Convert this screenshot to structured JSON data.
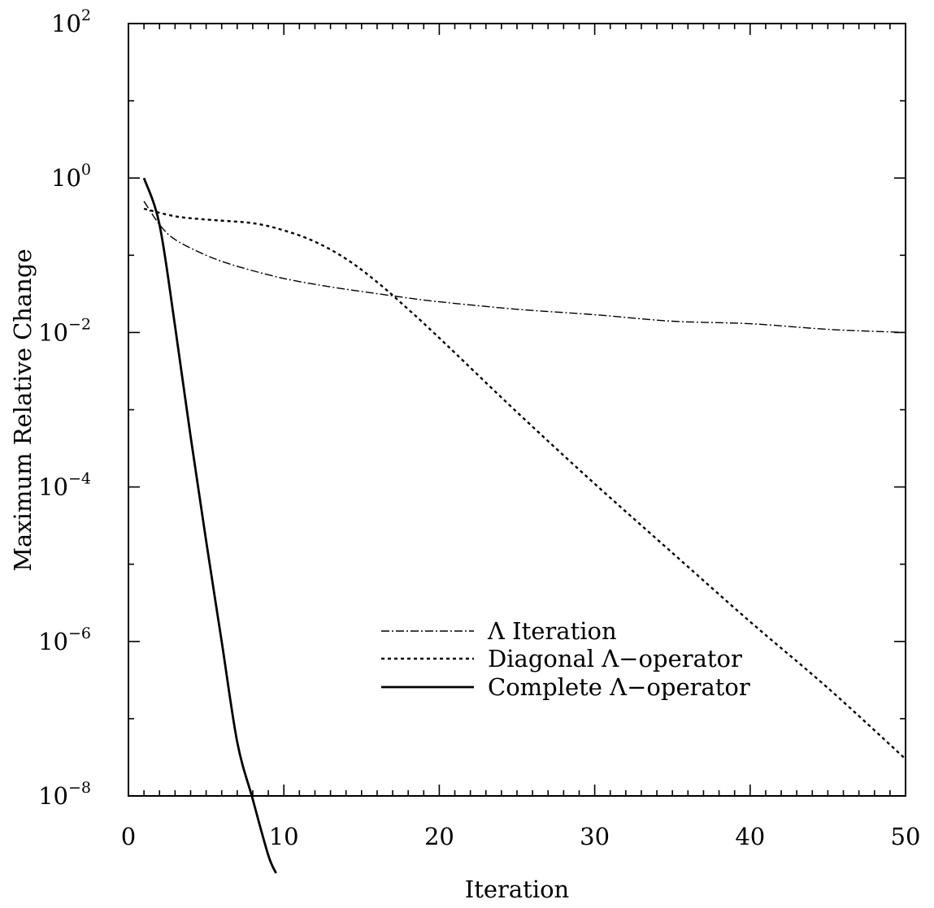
{
  "chart_data": {
    "type": "line",
    "xlabel": "Iteration",
    "ylabel": "Maximum Relative Change",
    "xlim": [
      0,
      50
    ],
    "ylim_log10": [
      -8,
      2
    ],
    "y_scale": "log",
    "x_ticks": [
      "0",
      "10",
      "20",
      "30",
      "40",
      "50"
    ],
    "y_ticks": [
      {
        "base": "10",
        "exp": "2"
      },
      {
        "base": "10",
        "exp": "0"
      },
      {
        "base": "10",
        "exp": "−2"
      },
      {
        "base": "10",
        "exp": "−4"
      },
      {
        "base": "10",
        "exp": "−6"
      },
      {
        "base": "10",
        "exp": "−8"
      }
    ],
    "grid": false,
    "legend_position": "lower-right",
    "series": [
      {
        "name": "Λ Iteration",
        "style": "dash-dot",
        "x": [
          1,
          2,
          3,
          5,
          7,
          10,
          13,
          15,
          18,
          20,
          25,
          30,
          35,
          40,
          45,
          50
        ],
        "y": [
          0.5,
          0.25,
          0.16,
          0.1,
          0.072,
          0.05,
          0.039,
          0.034,
          0.028,
          0.025,
          0.02,
          0.017,
          0.014,
          0.013,
          0.011,
          0.01
        ]
      },
      {
        "name": "Diagonal Λ−operator",
        "style": "dotted",
        "x": [
          1,
          3,
          5,
          8,
          10,
          12,
          14,
          16,
          18,
          20,
          25,
          30,
          35,
          40,
          45,
          50
        ],
        "y": [
          0.4,
          0.32,
          0.29,
          0.26,
          0.21,
          0.15,
          0.09,
          0.045,
          0.02,
          0.0085,
          0.00093,
          0.00011,
          1.4e-05,
          1.8e-06,
          2.5e-07,
          3e-08
        ]
      },
      {
        "name": "Complete Λ−operator",
        "style": "solid",
        "x": [
          1,
          2,
          3,
          4,
          5,
          6,
          7,
          8,
          9,
          9.5
        ],
        "y": [
          1,
          0.25,
          0.012,
          0.00045,
          2e-05,
          1e-06,
          5e-08,
          9e-09,
          1.7e-09,
          1e-09
        ]
      }
    ]
  }
}
